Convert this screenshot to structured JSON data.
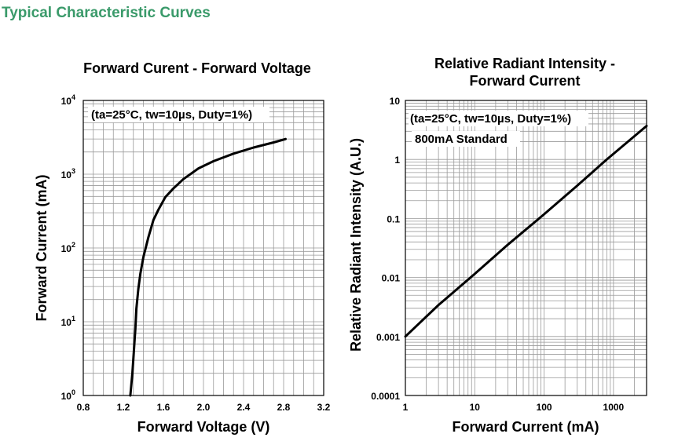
{
  "section_title": "Typical Characteristic Curves",
  "colors": {
    "section_title": "#3a9a6a",
    "grid": "#9a9a9a",
    "curve": "#000000"
  },
  "chart_data": [
    {
      "type": "line",
      "title": "Forward Curent - Forward Voltage",
      "xlabel": "Forward Voltage (V)",
      "ylabel": "Forward Current (mA)",
      "annotation": "(ta=25°C, tw=10µs, Duty=1%)",
      "xscale": "linear",
      "yscale": "log",
      "xlim": [
        0.8,
        3.2
      ],
      "ylim": [
        1,
        10000
      ],
      "grid": true,
      "x_ticks": [
        "0.8",
        "1.2",
        "1.6",
        "2.0",
        "2.4",
        "2.8",
        "3.2"
      ],
      "y_ticks": [
        {
          "base": "10",
          "exp": "0"
        },
        {
          "base": "10",
          "exp": "1"
        },
        {
          "base": "10",
          "exp": "2"
        },
        {
          "base": "10",
          "exp": "3"
        },
        {
          "base": "10",
          "exp": "4"
        }
      ],
      "series": [
        {
          "x": [
            1.27,
            1.29,
            1.3,
            1.31,
            1.32,
            1.33,
            1.35,
            1.37,
            1.4,
            1.45,
            1.5,
            1.55,
            1.62,
            1.7,
            1.8,
            1.95,
            2.1,
            2.3,
            2.5,
            2.7,
            2.82
          ],
          "y": [
            1,
            2,
            3.2,
            5,
            8,
            15,
            28,
            45,
            75,
            140,
            240,
            330,
            490,
            640,
            860,
            1200,
            1500,
            1900,
            2300,
            2700,
            3000
          ]
        }
      ]
    },
    {
      "type": "line",
      "title": "Relative Radiant Intensity -\nForward Current",
      "xlabel": "Forward Current (mA)",
      "ylabel": "Relative Radiant Intensity (A.U.)",
      "annotation": "(ta=25°C, tw=10µs, Duty=1%)",
      "annotation2": "800mA Standard",
      "xscale": "log",
      "yscale": "log",
      "xlim": [
        1,
        3000
      ],
      "ylim": [
        0.0001,
        10
      ],
      "grid": true,
      "x_ticks": [
        "1",
        "10",
        "100",
        "1000"
      ],
      "y_ticks": [
        "0.0001",
        "0.001",
        "0.01",
        "0.1",
        "1",
        "10"
      ],
      "series": [
        {
          "x": [
            1,
            3,
            10,
            30,
            100,
            300,
            800,
            3000
          ],
          "y": [
            0.001,
            0.0034,
            0.0115,
            0.036,
            0.118,
            0.36,
            1.0,
            3.7
          ]
        }
      ]
    }
  ]
}
